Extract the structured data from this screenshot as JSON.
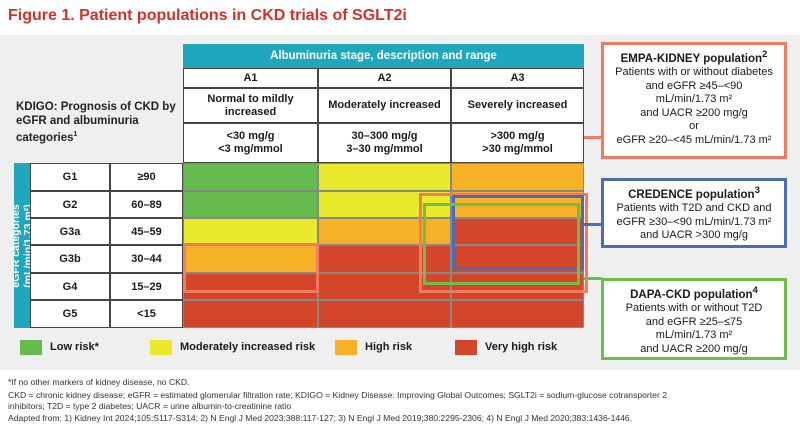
{
  "title": "Figure 1. Patient populations in CKD trials of SGLT2i",
  "kdigo_title": "KDIGO: Prognosis of CKD by eGFR and albuminuria categories",
  "kdigo_title_sup": "1",
  "albuminuria_header": "Albuminuria stage, description and range",
  "columns": [
    {
      "code": "A1",
      "desc": "Normal to mildly increased",
      "range1": "<30 mg/g",
      "range2": "<3 mg/mmol"
    },
    {
      "code": "A2",
      "desc": "Moderately increased",
      "range1": "30–300 mg/g",
      "range2": "3–30 mg/mmol"
    },
    {
      "code": "A3",
      "desc": "Severely increased",
      "range1": ">300 mg/g",
      "range2": ">30 mg/mmol"
    }
  ],
  "egfr_axis_label_line1": "eGFR categories",
  "egfr_axis_label_line2": "(mL/min/1.73 m²)",
  "rows": [
    {
      "code": "G1",
      "range": "≥90",
      "risk": [
        "green",
        "yellow",
        "orange"
      ]
    },
    {
      "code": "G2",
      "range": "60–89",
      "risk": [
        "green",
        "yellow",
        "orange"
      ]
    },
    {
      "code": "G3a",
      "range": "45–59",
      "risk": [
        "yellow",
        "orange",
        "red"
      ]
    },
    {
      "code": "G3b",
      "range": "30–44",
      "risk": [
        "orange",
        "red",
        "red"
      ]
    },
    {
      "code": "G4",
      "range": "15–29",
      "risk": [
        "red",
        "red",
        "red"
      ]
    },
    {
      "code": "G5",
      "range": "<15",
      "risk": [
        "red",
        "red",
        "red"
      ]
    }
  ],
  "legend": [
    {
      "label": "Low risk*",
      "color": "#66bb4f"
    },
    {
      "label": "Moderately increased risk",
      "color": "#eaea2c"
    },
    {
      "label": "High risk",
      "color": "#f7b126"
    },
    {
      "label": "Very high risk",
      "color": "#d3462a"
    }
  ],
  "populations": {
    "empa": {
      "title": "EMPA-KIDNEY population",
      "sup": "2",
      "lines": [
        "Patients with or without diabetes",
        "and eGFR ≥45–<90",
        "mL/min/1.73 m²",
        "and UACR ≥200 mg/g",
        "or",
        "eGFR ≥20–<45 mL/min/1.73 m²"
      ],
      "color": "#f07a63"
    },
    "credence": {
      "title": "CREDENCE population",
      "sup": "3",
      "lines": [
        "Patients with T2D and CKD and",
        "eGFR ≥30–<90 mL/min/1.73 m²",
        "and UACR >300 mg/g"
      ],
      "color": "#4a6bb5"
    },
    "dapa": {
      "title": "DAPA-CKD population",
      "sup": "4",
      "lines": [
        "Patients with or without T2D",
        "and eGFR ≥25–≤75",
        "mL/min/1.73 m²",
        "and UACR ≥200 mg/g"
      ],
      "color": "#6cc04a"
    }
  },
  "footnotes": [
    "*If no other markers of kidney disease, no CKD.",
    "CKD = chronic kidney disease; eGFR = estimated glomerular filtration rate; KDIGO = Kidney Disease: Improving Global Outcomes; SGLT2i = sodium-glucose cotransporter 2",
    "inhibitors; T2D = type 2 diabetes; UACR = urine albumin-to-creatinine ratio",
    "Adapted from: 1) Kidney Int 2024;105:S117-S314; 2) N Engl J Med 2023;388:117-127; 3) N Engl J Med 2019;380:2295-2306; 4) N Engl J Med 2020;383:1436-1446."
  ]
}
